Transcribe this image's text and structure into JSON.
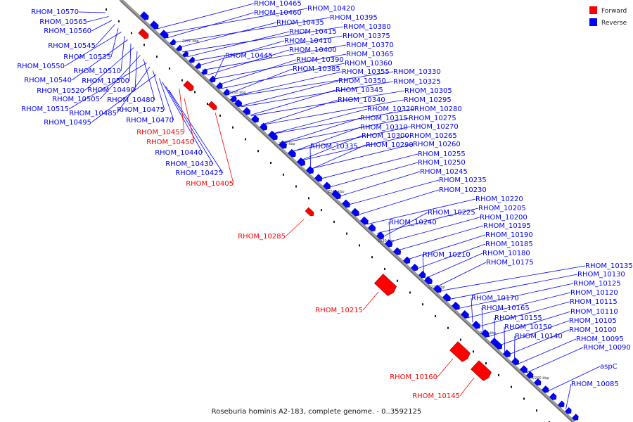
{
  "caption": "Roseburia hominis A2-183, complete genome. - 0..3592125",
  "legend": [
    {
      "name": "Forward",
      "color": "#ff0000"
    },
    {
      "name": "Reverse",
      "color": "#0000ff"
    }
  ],
  "colors": {
    "forward": "#ff0000",
    "reverse": "#0000ff",
    "backbone": "#808080"
  },
  "ticks": [
    "2270 kbp",
    "2260 kbp",
    "2250 kbp",
    "2240 kbp",
    "2230 kbp",
    "2220 kbp",
    "2210 kbp",
    "2200 kbp"
  ],
  "genes_left_reverse": [
    "RHOM_10570",
    "RHOM_10565",
    "RHOM_10560",
    "RHOM_10545",
    "RHOM_10535",
    "RHOM_10550",
    "RHOM_10510",
    "RHOM_10540",
    "RHOM_10500",
    "RHOM_10520",
    "RHOM_10490",
    "RHOM_10505",
    "RHOM_10480",
    "RHOM_10515",
    "RHOM_10485",
    "RHOM_10475",
    "RHOM_10495",
    "RHOM_10470",
    "RHOM_10440",
    "RHOM_10430",
    "RHOM_10425"
  ],
  "genes_left_forward": [
    "RHOM_10455",
    "RHOM_10450",
    "RHOM_10405",
    "RHOM_10285",
    "RHOM_10215",
    "RHOM_10160",
    "RHOM_10145"
  ],
  "genes_right_reverse": [
    "RHOM_10465",
    "RHOM_10460",
    "RHOM_10420",
    "RHOM_10395",
    "RHOM_10435",
    "RHOM_10380",
    "RHOM_10415",
    "RHOM_10375",
    "RHOM_10410",
    "RHOM_10370",
    "RHOM_10400",
    "RHOM_10365",
    "RHOM_10445",
    "RHOM_10390",
    "RHOM_10360",
    "RHOM_10385",
    "RHOM_10355",
    "RHOM_10330",
    "RHOM_10350",
    "RHOM_10325",
    "RHOM_10345",
    "RHOM_10305",
    "RHOM_10340",
    "RHOM_10295",
    "RHOM_10320",
    "RHOM_10280",
    "RHOM_10315",
    "RHOM_10275",
    "RHOM_10310",
    "RHOM_10270",
    "RHOM_10300",
    "RHOM_10265",
    "RHOM_10335",
    "RHOM_10290",
    "RHOM_10260",
    "RHOM_10255",
    "RHOM_10250",
    "RHOM_10245",
    "RHOM_10235",
    "RHOM_10230",
    "RHOM_10220",
    "RHOM_10205",
    "RHOM_10225",
    "RHOM_10200",
    "RHOM_10240",
    "RHOM_10195",
    "RHOM_10190",
    "RHOM_10185",
    "RHOM_10210",
    "RHOM_10180",
    "RHOM_10175",
    "RHOM_10135",
    "RHOM_10130",
    "RHOM_10125",
    "RHOM_10120",
    "RHOM_10115",
    "RHOM_10170",
    "RHOM_10110",
    "RHOM_10165",
    "RHOM_10105",
    "RHOM_10155",
    "RHOM_10100",
    "RHOM_10150",
    "RHOM_10095",
    "RHOM_10140",
    "RHOM_10090",
    "aspC",
    "RHOM_10085"
  ]
}
